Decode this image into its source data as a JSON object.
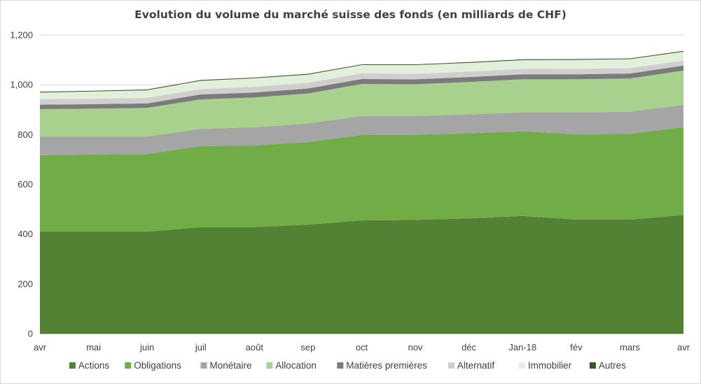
{
  "chart_data": {
    "type": "area",
    "stacked": true,
    "title": "Evolution du volume du marché suisse des fonds (en milliards de CHF)",
    "xlabel": "",
    "ylabel": "",
    "ylim": [
      0,
      1200
    ],
    "yticks": [
      "0",
      "200",
      "400",
      "600",
      "800",
      "1,000",
      "1,200"
    ],
    "grid": true,
    "legend_position": "bottom",
    "categories": [
      "avr",
      "mai",
      "juin",
      "juil",
      "août",
      "sep",
      "oct",
      "nov",
      "déc",
      "Jan-18",
      "fév",
      "mars",
      "avr"
    ],
    "series": [
      {
        "name": "Actions",
        "color": "#548235",
        "values": [
          410,
          410,
          410,
          428,
          428,
          438,
          455,
          457,
          463,
          473,
          458,
          458,
          477
        ]
      },
      {
        "name": "Obligations",
        "color": "#70ad47",
        "values": [
          307,
          310,
          312,
          325,
          328,
          332,
          343,
          342,
          342,
          340,
          343,
          345,
          352
        ]
      },
      {
        "name": "Monétaire",
        "color": "#a5a5a5",
        "values": [
          75,
          72,
          70,
          70,
          73,
          75,
          77,
          76,
          76,
          76,
          88,
          89,
          90
        ]
      },
      {
        "name": "Allocation",
        "color": "#a9d18e",
        "values": [
          110,
          112,
          115,
          118,
          120,
          120,
          128,
          127,
          130,
          133,
          133,
          133,
          138
        ]
      },
      {
        "name": "Matières premières",
        "color": "#7b7b7b",
        "values": [
          18,
          18,
          18,
          20,
          20,
          20,
          20,
          20,
          20,
          20,
          20,
          20,
          20
        ]
      },
      {
        "name": "Alternatif",
        "color": "#d0cece",
        "values": [
          22,
          22,
          22,
          22,
          23,
          23,
          23,
          22,
          22,
          22,
          22,
          22,
          20
        ]
      },
      {
        "name": "Immobilier",
        "color": "#e2efda",
        "values": [
          27,
          29,
          31,
          33,
          34,
          33,
          33,
          35,
          35,
          35,
          36,
          36,
          36
        ]
      },
      {
        "name": "Autres",
        "color": "#375623",
        "values": [
          3,
          3,
          3,
          3,
          3,
          3,
          3,
          3,
          3,
          3,
          3,
          3,
          3
        ]
      }
    ]
  }
}
